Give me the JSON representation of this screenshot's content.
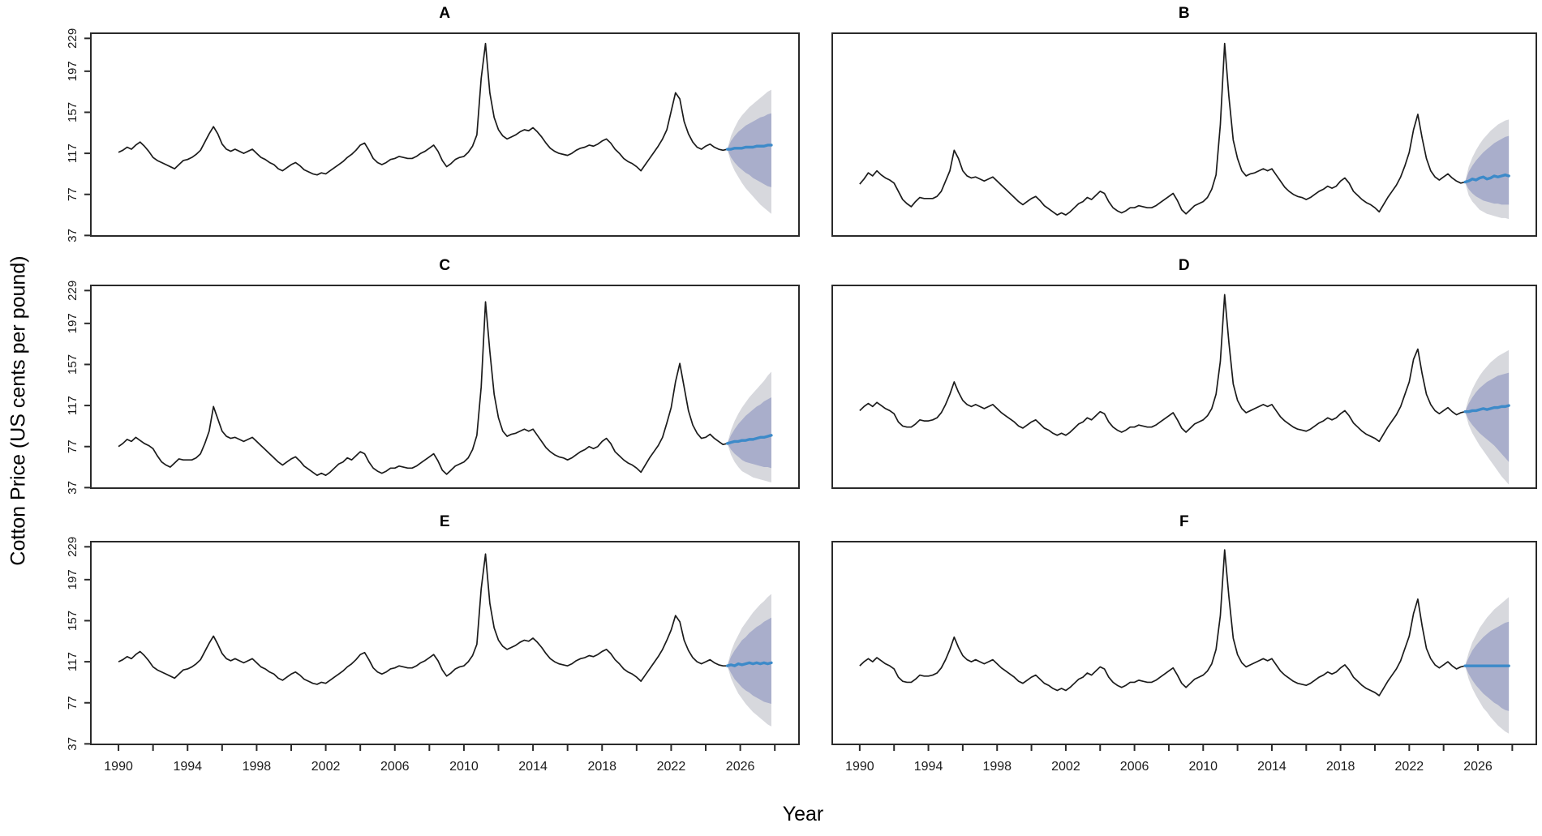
{
  "figure": {
    "y_axis_title": "Cotton Price (US cents per pound)",
    "x_axis_title": "Year"
  },
  "colors": {
    "history_line": "#1b1b1b",
    "forecast_line": "#3d8ac9",
    "band_80": "#a9aecb",
    "band_95": "#d7d8dd",
    "box": "#2a2a2a",
    "tick_text": "#1b1b1b"
  },
  "axes": {
    "y_ticks": [
      37,
      77,
      117,
      157,
      197,
      229
    ],
    "x_ticks": [
      1990,
      1992,
      1994,
      1996,
      1998,
      2000,
      2002,
      2004,
      2006,
      2008,
      2010,
      2012,
      2014,
      2016,
      2018,
      2020,
      2022,
      2024,
      2026,
      2028
    ],
    "x_labels": [
      1990,
      1994,
      1998,
      2002,
      2006,
      2010,
      2014,
      2018,
      2022,
      2026
    ],
    "x_range": [
      1988.4,
      2029.4
    ],
    "y_range": [
      36.5,
      234
    ]
  },
  "chart_data": [
    {
      "type": "line",
      "label": "A",
      "history_start_year": 1990,
      "history_step_years": 0.25,
      "history": [
        118,
        120,
        123,
        121,
        125,
        128,
        124,
        119,
        113,
        110,
        108,
        106,
        104,
        102,
        106,
        110,
        111,
        113,
        116,
        120,
        128,
        136,
        143,
        136,
        126,
        121,
        119,
        121,
        119,
        117,
        119,
        121,
        117,
        113,
        111,
        108,
        106,
        102,
        100,
        103,
        106,
        108,
        105,
        101,
        99,
        97,
        96,
        98,
        97,
        100,
        103,
        106,
        109,
        113,
        116,
        120,
        125,
        127,
        120,
        112,
        108,
        106,
        108,
        111,
        112,
        114,
        113,
        112,
        112,
        114,
        117,
        119,
        122,
        125,
        119,
        110,
        104,
        107,
        111,
        113,
        114,
        118,
        124,
        135,
        190,
        224,
        176,
        152,
        140,
        134,
        131,
        133,
        135,
        138,
        140,
        139,
        142,
        138,
        133,
        127,
        122,
        119,
        117,
        116,
        115,
        117,
        120,
        122,
        123,
        125,
        124,
        126,
        129,
        131,
        127,
        121,
        117,
        112,
        109,
        107,
        104,
        100,
        106,
        112,
        118,
        124,
        131,
        140,
        158,
        176,
        170,
        148,
        136,
        128,
        123,
        121,
        124,
        126,
        123,
        121,
        120,
        121
      ],
      "forecast": {
        "start_year": 2025.25,
        "step_years": 0.2125,
        "mean": [
          121,
          122,
          122,
          122,
          123,
          123,
          123,
          124,
          124,
          124,
          125,
          125
        ],
        "hi80": [
          129,
          134,
          138,
          141,
          144,
          146,
          148,
          150,
          152,
          153,
          155,
          156
        ],
        "lo80": [
          113,
          108,
          104,
          101,
          98,
          96,
          93,
          91,
          89,
          87,
          85,
          84
        ],
        "hi95": [
          134,
          142,
          149,
          154,
          158,
          162,
          165,
          168,
          171,
          174,
          177,
          179
        ],
        "lo95": [
          108,
          100,
          94,
          88,
          83,
          79,
          75,
          71,
          67,
          64,
          61,
          58
        ]
      }
    },
    {
      "type": "line",
      "label": "B",
      "history_start_year": 1990,
      "history_step_years": 0.25,
      "history": [
        87,
        92,
        98,
        95,
        100,
        96,
        93,
        91,
        88,
        80,
        72,
        68,
        65,
        70,
        74,
        73,
        73,
        73,
        75,
        80,
        90,
        100,
        120,
        112,
        100,
        95,
        93,
        94,
        92,
        90,
        92,
        94,
        90,
        86,
        82,
        78,
        74,
        70,
        67,
        70,
        73,
        75,
        71,
        66,
        63,
        60,
        57,
        59,
        57,
        60,
        64,
        68,
        70,
        74,
        72,
        76,
        80,
        78,
        70,
        64,
        61,
        59,
        61,
        64,
        64,
        66,
        65,
        64,
        64,
        66,
        69,
        72,
        75,
        78,
        71,
        62,
        58,
        62,
        66,
        68,
        70,
        74,
        82,
        96,
        145,
        224,
        172,
        130,
        112,
        100,
        95,
        97,
        98,
        100,
        102,
        100,
        102,
        96,
        90,
        84,
        80,
        77,
        75,
        74,
        72,
        74,
        77,
        80,
        82,
        85,
        83,
        85,
        90,
        93,
        88,
        80,
        76,
        72,
        69,
        67,
        64,
        60,
        67,
        74,
        80,
        86,
        94,
        105,
        118,
        140,
        155,
        132,
        112,
        100,
        94,
        91,
        94,
        97,
        93,
        90,
        88,
        89
      ],
      "forecast": {
        "start_year": 2025.25,
        "step_years": 0.2125,
        "mean": [
          90,
          92,
          91,
          93,
          94,
          92,
          93,
          95,
          94,
          95,
          96,
          95
        ],
        "hi80": [
          99,
          105,
          110,
          114,
          118,
          121,
          124,
          127,
          129,
          131,
          133,
          134
        ],
        "lo80": [
          82,
          78,
          75,
          73,
          71,
          70,
          69,
          68,
          68,
          67,
          67,
          67
        ],
        "hi95": [
          104,
          113,
          120,
          126,
          131,
          135,
          139,
          142,
          145,
          147,
          149,
          150
        ],
        "lo95": [
          76,
          70,
          66,
          62,
          60,
          58,
          57,
          56,
          55,
          54,
          54,
          53
        ]
      }
    },
    {
      "type": "line",
      "label": "C",
      "history_start_year": 1990,
      "history_step_years": 0.25,
      "history": [
        77,
        80,
        84,
        82,
        86,
        83,
        80,
        78,
        75,
        68,
        62,
        59,
        57,
        61,
        65,
        64,
        64,
        64,
        66,
        70,
        80,
        92,
        116,
        104,
        92,
        87,
        85,
        86,
        84,
        82,
        84,
        86,
        82,
        78,
        74,
        70,
        66,
        62,
        59,
        62,
        65,
        67,
        63,
        58,
        55,
        52,
        49,
        51,
        49,
        52,
        56,
        60,
        62,
        66,
        64,
        68,
        72,
        70,
        62,
        56,
        53,
        51,
        53,
        56,
        56,
        58,
        57,
        56,
        56,
        58,
        61,
        64,
        67,
        70,
        63,
        54,
        50,
        54,
        58,
        60,
        62,
        66,
        74,
        88,
        135,
        218,
        170,
        128,
        105,
        92,
        87,
        89,
        90,
        92,
        94,
        92,
        94,
        88,
        82,
        76,
        72,
        69,
        67,
        66,
        64,
        66,
        69,
        72,
        74,
        77,
        75,
        77,
        82,
        85,
        80,
        72,
        68,
        64,
        61,
        59,
        56,
        52,
        59,
        66,
        72,
        78,
        86,
        100,
        115,
        140,
        158,
        135,
        112,
        98,
        90,
        85,
        86,
        89,
        85,
        82,
        79,
        80
      ],
      "forecast": {
        "start_year": 2025.25,
        "step_years": 0.2125,
        "mean": [
          81,
          82,
          82,
          83,
          83,
          84,
          84,
          85,
          86,
          86,
          87,
          88
        ],
        "hi80": [
          88,
          94,
          99,
          103,
          107,
          110,
          113,
          116,
          118,
          121,
          123,
          125
        ],
        "lo80": [
          74,
          70,
          67,
          64,
          62,
          61,
          60,
          59,
          58,
          57,
          57,
          56
        ],
        "hi95": [
          93,
          102,
          109,
          115,
          120,
          125,
          129,
          133,
          137,
          141,
          146,
          150
        ],
        "lo95": [
          69,
          62,
          57,
          53,
          51,
          49,
          47,
          46,
          45,
          44,
          43,
          42
        ]
      }
    },
    {
      "type": "line",
      "label": "D",
      "history_start_year": 1990,
      "history_step_years": 0.25,
      "history": [
        112,
        116,
        119,
        116,
        120,
        117,
        114,
        112,
        109,
        101,
        97,
        96,
        96,
        99,
        103,
        102,
        102,
        103,
        105,
        110,
        118,
        128,
        140,
        130,
        122,
        118,
        116,
        118,
        116,
        114,
        116,
        118,
        114,
        110,
        107,
        104,
        101,
        97,
        95,
        98,
        101,
        103,
        99,
        95,
        93,
        90,
        88,
        90,
        88,
        91,
        95,
        99,
        101,
        105,
        103,
        107,
        111,
        109,
        101,
        96,
        93,
        91,
        93,
        96,
        96,
        98,
        97,
        96,
        96,
        98,
        101,
        104,
        107,
        110,
        103,
        95,
        91,
        95,
        99,
        101,
        103,
        107,
        114,
        128,
        160,
        225,
        178,
        138,
        122,
        114,
        110,
        112,
        114,
        116,
        118,
        116,
        118,
        112,
        106,
        102,
        99,
        96,
        94,
        93,
        92,
        94,
        97,
        100,
        102,
        105,
        103,
        105,
        109,
        112,
        107,
        100,
        96,
        92,
        89,
        87,
        85,
        82,
        89,
        96,
        102,
        108,
        116,
        128,
        140,
        162,
        172,
        148,
        128,
        118,
        112,
        109,
        112,
        115,
        111,
        108,
        110,
        111
      ],
      "forecast": {
        "start_year": 2025.25,
        "step_years": 0.2125,
        "mean": [
          111,
          112,
          112,
          113,
          114,
          113,
          114,
          115,
          115,
          116,
          116,
          117
        ],
        "hi80": [
          119,
          125,
          130,
          134,
          137,
          140,
          142,
          144,
          146,
          147,
          148,
          149
        ],
        "lo80": [
          103,
          98,
          94,
          90,
          87,
          84,
          81,
          78,
          74,
          70,
          66,
          62
        ],
        "hi95": [
          124,
          133,
          140,
          146,
          151,
          155,
          159,
          162,
          165,
          167,
          169,
          171
        ],
        "lo95": [
          98,
          90,
          84,
          78,
          73,
          68,
          63,
          58,
          53,
          48,
          44,
          40
        ]
      }
    },
    {
      "type": "line",
      "label": "E",
      "history_start_year": 1990,
      "history_step_years": 0.25,
      "history": [
        117,
        119,
        122,
        120,
        124,
        127,
        123,
        118,
        112,
        109,
        107,
        105,
        103,
        101,
        105,
        109,
        110,
        112,
        115,
        119,
        127,
        135,
        142,
        134,
        125,
        120,
        118,
        120,
        118,
        116,
        118,
        120,
        116,
        112,
        110,
        107,
        105,
        101,
        99,
        102,
        105,
        107,
        104,
        100,
        98,
        96,
        95,
        97,
        96,
        99,
        102,
        105,
        108,
        112,
        115,
        119,
        124,
        126,
        119,
        111,
        107,
        105,
        107,
        110,
        111,
        113,
        112,
        111,
        111,
        113,
        116,
        118,
        121,
        124,
        118,
        109,
        103,
        106,
        110,
        112,
        113,
        117,
        123,
        134,
        188,
        222,
        174,
        150,
        138,
        132,
        129,
        131,
        133,
        136,
        138,
        137,
        140,
        136,
        131,
        125,
        120,
        117,
        115,
        114,
        113,
        115,
        118,
        120,
        121,
        123,
        122,
        124,
        127,
        129,
        125,
        119,
        115,
        110,
        107,
        105,
        102,
        98,
        104,
        110,
        116,
        122,
        129,
        138,
        148,
        162,
        156,
        138,
        128,
        121,
        117,
        115,
        117,
        119,
        116,
        114,
        113,
        113
      ],
      "forecast": {
        "start_year": 2025.25,
        "step_years": 0.2125,
        "mean": [
          114,
          113,
          115,
          114,
          115,
          116,
          115,
          116,
          115,
          116,
          115,
          116
        ],
        "hi80": [
          122,
          128,
          133,
          138,
          141,
          145,
          148,
          151,
          153,
          156,
          158,
          160
        ],
        "lo80": [
          106,
          100,
          96,
          92,
          89,
          87,
          84,
          82,
          80,
          78,
          77,
          76
        ],
        "hi95": [
          127,
          136,
          143,
          150,
          155,
          160,
          165,
          169,
          173,
          176,
          180,
          183
        ],
        "lo95": [
          101,
          93,
          86,
          81,
          76,
          72,
          68,
          65,
          62,
          59,
          56,
          54
        ]
      }
    },
    {
      "type": "line",
      "label": "F",
      "history_start_year": 1990,
      "history_step_years": 0.25,
      "history": [
        113,
        117,
        120,
        117,
        121,
        118,
        115,
        113,
        110,
        102,
        98,
        97,
        97,
        100,
        104,
        103,
        103,
        104,
        106,
        111,
        119,
        129,
        141,
        131,
        123,
        119,
        117,
        119,
        117,
        115,
        117,
        119,
        115,
        111,
        108,
        105,
        102,
        98,
        96,
        99,
        102,
        104,
        100,
        96,
        94,
        91,
        89,
        91,
        89,
        92,
        96,
        100,
        102,
        106,
        104,
        108,
        112,
        110,
        102,
        97,
        94,
        92,
        94,
        97,
        97,
        99,
        98,
        97,
        97,
        99,
        102,
        105,
        108,
        111,
        104,
        96,
        92,
        96,
        100,
        102,
        104,
        108,
        115,
        129,
        162,
        226,
        180,
        140,
        124,
        116,
        112,
        114,
        116,
        118,
        120,
        118,
        120,
        114,
        108,
        104,
        101,
        98,
        96,
        95,
        94,
        96,
        99,
        102,
        104,
        107,
        105,
        107,
        111,
        114,
        109,
        102,
        98,
        94,
        91,
        89,
        87,
        84,
        91,
        98,
        104,
        110,
        118,
        130,
        142,
        164,
        178,
        152,
        130,
        120,
        114,
        111,
        114,
        117,
        113,
        110,
        112,
        113
      ],
      "forecast": {
        "start_year": 2025.25,
        "step_years": 0.2125,
        "mean": [
          113,
          113,
          113,
          113,
          113,
          113,
          113,
          113,
          113,
          113,
          113,
          113
        ],
        "hi80": [
          121,
          128,
          133,
          137,
          141,
          144,
          147,
          149,
          151,
          153,
          155,
          156
        ],
        "lo80": [
          105,
          99,
          94,
          90,
          86,
          83,
          80,
          77,
          75,
          72,
          70,
          69
        ],
        "hi95": [
          126,
          136,
          143,
          150,
          155,
          160,
          164,
          168,
          171,
          174,
          177,
          180
        ],
        "lo95": [
          100,
          91,
          84,
          78,
          72,
          68,
          63,
          59,
          55,
          52,
          49,
          47
        ]
      }
    }
  ]
}
